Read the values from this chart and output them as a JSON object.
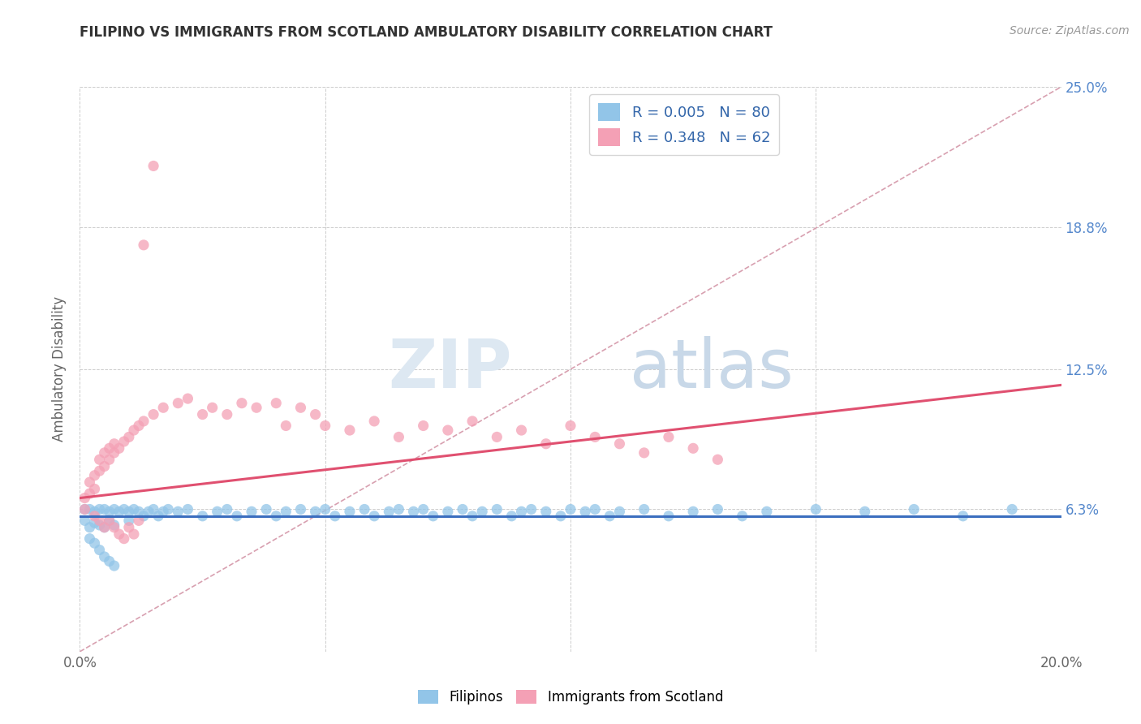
{
  "title": "FILIPINO VS IMMIGRANTS FROM SCOTLAND AMBULATORY DISABILITY CORRELATION CHART",
  "source": "Source: ZipAtlas.com",
  "ylabel": "Ambulatory Disability",
  "xlim": [
    0.0,
    0.2
  ],
  "ylim": [
    0.0,
    0.25
  ],
  "r_filipino": 0.005,
  "n_filipino": 80,
  "r_scotland": 0.348,
  "n_scotland": 62,
  "color_filipino": "#92C5E8",
  "color_scotland": "#F4A0B5",
  "color_line_filipino": "#3B6EBF",
  "color_line_scotland": "#E05070",
  "color_trend_dashed": "#E8A0B0",
  "filipinos_x": [
    0.001,
    0.001,
    0.002,
    0.002,
    0.003,
    0.003,
    0.004,
    0.004,
    0.005,
    0.005,
    0.006,
    0.006,
    0.007,
    0.007,
    0.008,
    0.009,
    0.01,
    0.01,
    0.011,
    0.012,
    0.013,
    0.014,
    0.015,
    0.016,
    0.017,
    0.018,
    0.02,
    0.022,
    0.025,
    0.028,
    0.03,
    0.032,
    0.035,
    0.038,
    0.04,
    0.042,
    0.045,
    0.048,
    0.05,
    0.052,
    0.055,
    0.058,
    0.06,
    0.063,
    0.065,
    0.068,
    0.07,
    0.072,
    0.075,
    0.078,
    0.08,
    0.082,
    0.085,
    0.088,
    0.09,
    0.092,
    0.095,
    0.098,
    0.1,
    0.103,
    0.105,
    0.108,
    0.11,
    0.115,
    0.12,
    0.125,
    0.13,
    0.135,
    0.14,
    0.15,
    0.16,
    0.17,
    0.18,
    0.19,
    0.002,
    0.003,
    0.004,
    0.005,
    0.006,
    0.007
  ],
  "filipinos_y": [
    0.063,
    0.058,
    0.063,
    0.055,
    0.062,
    0.057,
    0.063,
    0.056,
    0.063,
    0.055,
    0.062,
    0.058,
    0.063,
    0.056,
    0.062,
    0.063,
    0.062,
    0.058,
    0.063,
    0.062,
    0.06,
    0.062,
    0.063,
    0.06,
    0.062,
    0.063,
    0.062,
    0.063,
    0.06,
    0.062,
    0.063,
    0.06,
    0.062,
    0.063,
    0.06,
    0.062,
    0.063,
    0.062,
    0.063,
    0.06,
    0.062,
    0.063,
    0.06,
    0.062,
    0.063,
    0.062,
    0.063,
    0.06,
    0.062,
    0.063,
    0.06,
    0.062,
    0.063,
    0.06,
    0.062,
    0.063,
    0.062,
    0.06,
    0.063,
    0.062,
    0.063,
    0.06,
    0.062,
    0.063,
    0.06,
    0.062,
    0.063,
    0.06,
    0.062,
    0.063,
    0.062,
    0.063,
    0.06,
    0.063,
    0.05,
    0.048,
    0.045,
    0.042,
    0.04,
    0.038
  ],
  "scotland_x": [
    0.001,
    0.001,
    0.002,
    0.002,
    0.003,
    0.003,
    0.004,
    0.004,
    0.005,
    0.005,
    0.006,
    0.006,
    0.007,
    0.007,
    0.008,
    0.009,
    0.01,
    0.011,
    0.012,
    0.013,
    0.015,
    0.017,
    0.02,
    0.022,
    0.025,
    0.027,
    0.03,
    0.033,
    0.036,
    0.04,
    0.042,
    0.045,
    0.048,
    0.05,
    0.055,
    0.06,
    0.065,
    0.07,
    0.075,
    0.08,
    0.085,
    0.09,
    0.095,
    0.1,
    0.105,
    0.11,
    0.115,
    0.12,
    0.125,
    0.13,
    0.003,
    0.004,
    0.005,
    0.006,
    0.007,
    0.008,
    0.009,
    0.01,
    0.011,
    0.012,
    0.013,
    0.015
  ],
  "scotland_y": [
    0.063,
    0.068,
    0.07,
    0.075,
    0.072,
    0.078,
    0.08,
    0.085,
    0.082,
    0.088,
    0.085,
    0.09,
    0.088,
    0.092,
    0.09,
    0.093,
    0.095,
    0.098,
    0.1,
    0.102,
    0.105,
    0.108,
    0.11,
    0.112,
    0.105,
    0.108,
    0.105,
    0.11,
    0.108,
    0.11,
    0.1,
    0.108,
    0.105,
    0.1,
    0.098,
    0.102,
    0.095,
    0.1,
    0.098,
    0.102,
    0.095,
    0.098,
    0.092,
    0.1,
    0.095,
    0.092,
    0.088,
    0.095,
    0.09,
    0.085,
    0.06,
    0.058,
    0.055,
    0.058,
    0.055,
    0.052,
    0.05,
    0.055,
    0.052,
    0.058,
    0.18,
    0.215
  ]
}
